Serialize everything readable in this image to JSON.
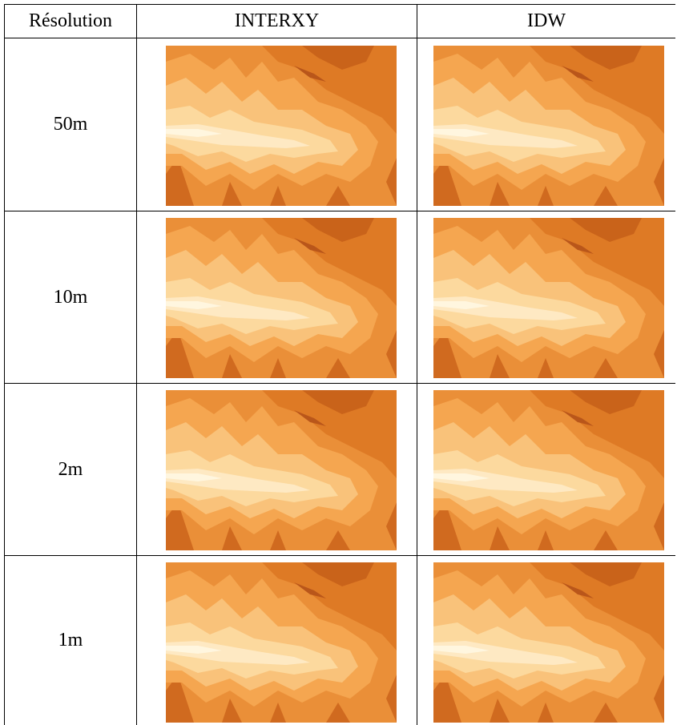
{
  "table": {
    "header": [
      "Résolution",
      "INTERXY",
      "IDW"
    ],
    "rows": [
      "50m",
      "10m",
      "2m",
      "1m"
    ]
  }
}
